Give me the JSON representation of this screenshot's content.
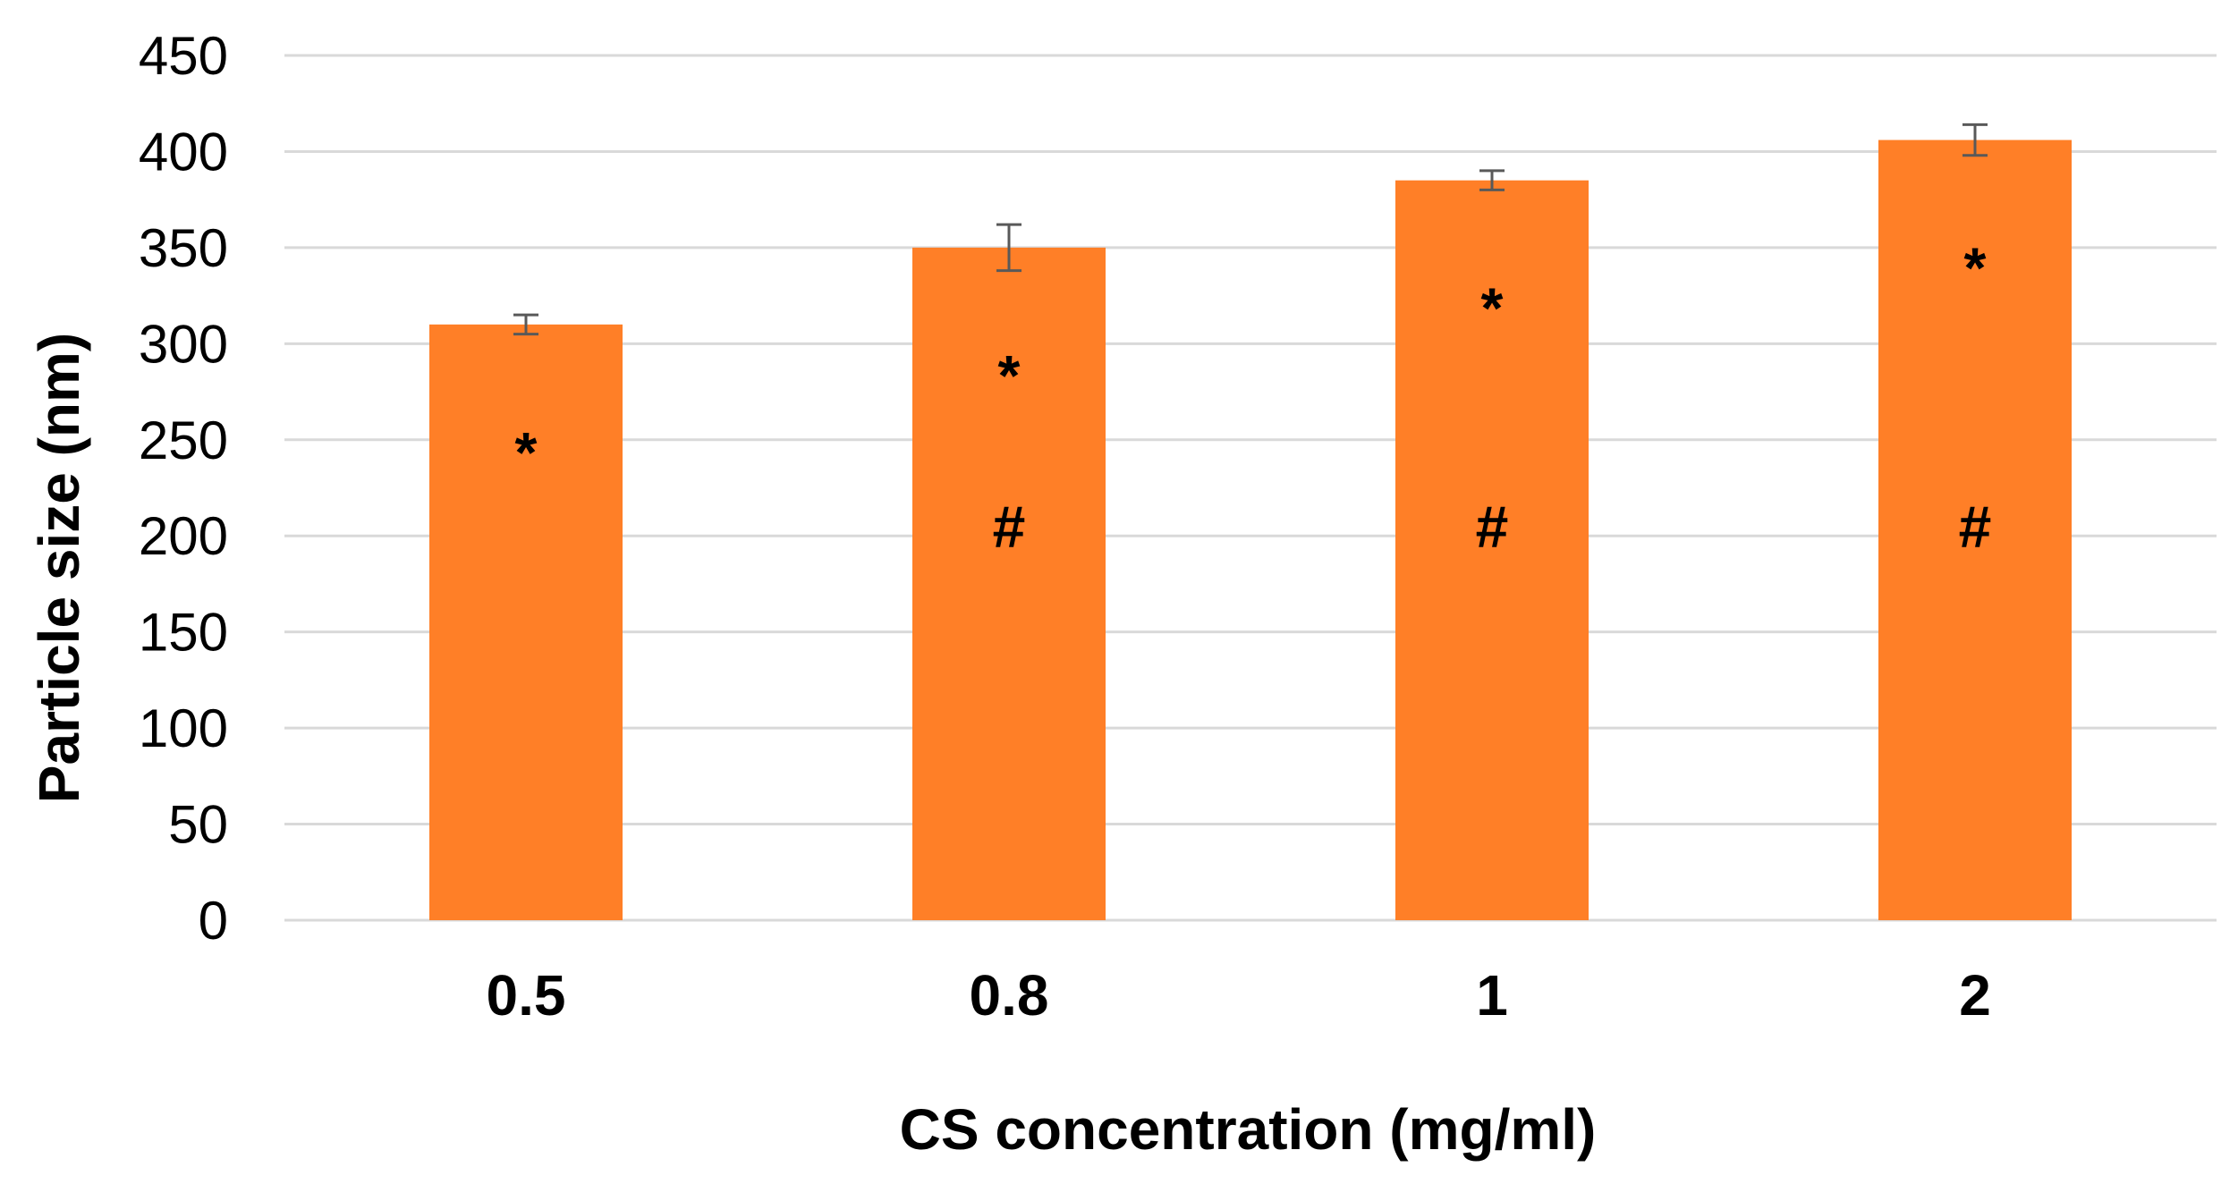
{
  "chart_data": {
    "type": "bar",
    "title": "",
    "xlabel": "CS concentration (mg/ml)",
    "ylabel": "Particle size (nm)",
    "categories": [
      "0.5",
      "0.8",
      "1",
      "2"
    ],
    "values": [
      310,
      350,
      385,
      406
    ],
    "error": [
      5,
      12,
      5,
      8
    ],
    "ylim": [
      0,
      450
    ],
    "yticks": [
      "0",
      "50",
      "100",
      "150",
      "200",
      "250",
      "300",
      "350",
      "400",
      "450"
    ],
    "bar_color": "#FF7F27",
    "error_bar_color": "#595959",
    "grid": true,
    "legend": "none",
    "annotations": [
      {
        "category": "0.5",
        "labels": [
          "*"
        ]
      },
      {
        "category": "0.8",
        "labels": [
          "*",
          "#"
        ]
      },
      {
        "category": "1",
        "labels": [
          "*",
          "#"
        ]
      },
      {
        "category": "2",
        "labels": [
          "*",
          "#"
        ]
      }
    ]
  }
}
